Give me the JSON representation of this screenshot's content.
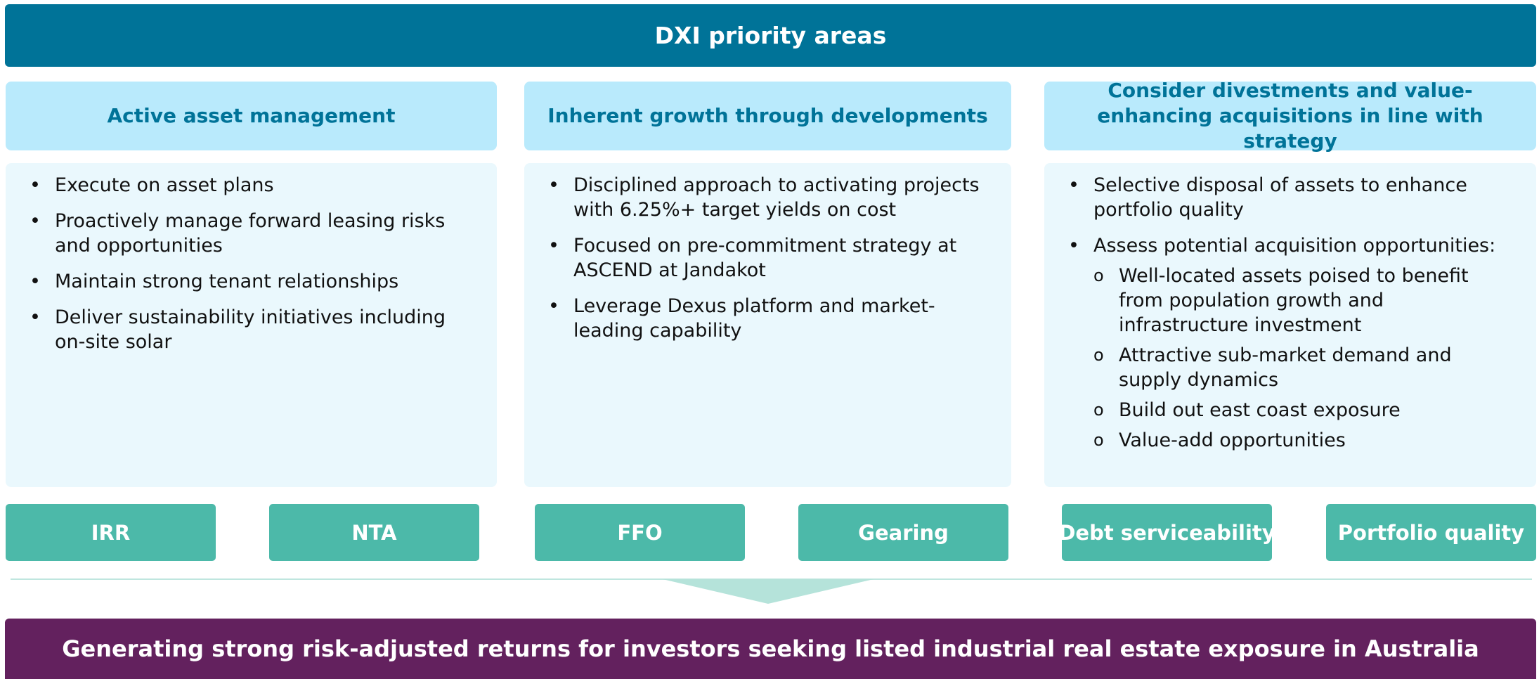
{
  "header": {
    "title": "DXI priority areas"
  },
  "columns": [
    {
      "heading": "Active asset management",
      "bullets": [
        {
          "text": "Execute on asset plans"
        },
        {
          "text": "Proactively manage forward leasing risks and opportunities"
        },
        {
          "text": "Maintain strong tenant relationships"
        },
        {
          "text": "Deliver sustainability initiatives including on-site solar"
        }
      ]
    },
    {
      "heading": "Inherent growth through developments",
      "bullets": [
        {
          "text": "Disciplined approach to activating projects with 6.25%+ target yields on cost"
        },
        {
          "text": "Focused on pre-commitment strategy at ASCEND at Jandakot"
        },
        {
          "text": "Leverage Dexus platform and market-leading capability"
        }
      ]
    },
    {
      "heading": "Consider divestments and value-enhancing acquisitions in line with strategy",
      "bullets": [
        {
          "text": "Selective disposal of assets to enhance portfolio quality"
        },
        {
          "text": "Assess potential acquisition opportunities:",
          "sub": [
            "Well-located assets poised to benefit from population growth and infrastructure investment",
            "Attractive sub-market demand and supply dynamics",
            "Build out east coast exposure",
            "Value-add opportunities"
          ]
        }
      ]
    }
  ],
  "metrics": [
    "IRR",
    "NTA",
    "FFO",
    "Gearing",
    "Debt serviceability",
    "Portfolio quality"
  ],
  "footer": {
    "text": "Generating strong risk-adjusted returns for investors seeking listed industrial real estate exposure in Australia"
  }
}
